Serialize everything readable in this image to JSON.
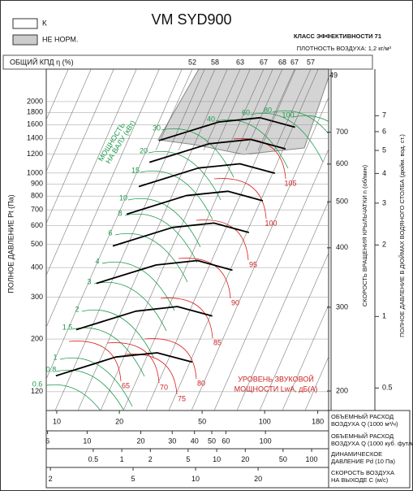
{
  "chart_data": {
    "type": "line",
    "title": "VM  SYD900",
    "efficiency_class": "КЛАСС ЭФФЕКТИВНОСТИ 71",
    "air_density": "ПЛОТНОСТЬ ВОЗДУХА: 1,2 кг/м³",
    "legend_items": [
      "K",
      "НЕ НОРМ."
    ],
    "efficiency_label": "ОБЩИЙ КПД η (%)",
    "efficiency_values": [
      52,
      58,
      63,
      67,
      68,
      67,
      57
    ],
    "y_label": "ПОЛНОЕ ДАВЛЕНИЕ Pt (Па)",
    "y_scale": "log",
    "ylim": [
      100,
      2740
    ],
    "yticks": [
      120,
      200,
      300,
      400,
      500,
      600,
      700,
      800,
      900,
      1000,
      1200,
      1400,
      1600,
      1800,
      2000
    ],
    "x_label": [
      "ОБЪЕМНЫЙ РАСХОД",
      "ВОЗДУХА Q (1000 м³/ч)"
    ],
    "x_scale": "log",
    "xlim": [
      8.9,
      203
    ],
    "xticks": [
      10,
      20,
      50,
      100,
      180
    ],
    "series": [
      {
        "color": "#000000",
        "x": [
          31,
          60,
          95,
          140
        ],
        "values": [
          1370,
          1640,
          1710,
          1560
        ]
      },
      {
        "color": "#000000",
        "x": [
          27.9,
          54,
          85.5,
          126
        ],
        "values": [
          1110,
          1328,
          1385,
          1264
        ]
      },
      {
        "color": "#000000",
        "x": [
          24.8,
          48,
          76,
          112
        ],
        "values": [
          877,
          1050,
          1094,
          998
        ]
      },
      {
        "color": "#000000",
        "x": [
          21.7,
          42,
          66.5,
          98
        ],
        "values": [
          671,
          804,
          838,
          764
        ]
      },
      {
        "color": "#000000",
        "x": [
          18.6,
          36,
          57,
          84
        ],
        "values": [
          493,
          590,
          616,
          562
        ]
      },
      {
        "color": "#000000",
        "x": [
          15.5,
          30,
          47.5,
          70
        ],
        "values": [
          343,
          410,
          428,
          390
        ]
      },
      {
        "color": "#000000",
        "x": [
          12.4,
          24,
          38,
          56
        ],
        "values": [
          219,
          262,
          274,
          250
        ]
      },
      {
        "color": "#000000",
        "x": [
          9.9,
          19.2,
          30.4,
          44.8
        ],
        "values": [
          140,
          168,
          175,
          160
        ]
      }
    ],
    "cfm_axis": {
      "label": [
        "ОБЪЕМНЫЙ РАСХОД",
        "ВОЗДУХА Q (1000 куб. фут/мин)"
      ],
      "lim": [
        5.9,
        226
      ],
      "ticks": [
        6,
        10,
        20,
        30,
        40,
        50,
        60,
        100
      ]
    },
    "dynamic_pressure_axis": {
      "label": [
        "ДИНАМИЧЕСКОЕ",
        "ДАВЛЕНИЕ Pd (10 Па)"
      ],
      "lim": [
        0.16,
        151
      ],
      "ticks": [
        0.5,
        1,
        2,
        5,
        10,
        20,
        50,
        100
      ]
    },
    "velocity_axis": {
      "label": [
        "СКОРОСТЬ ВОЗДУХА",
        "НА ВЫХОДЕ C (м/с)"
      ],
      "lim": [
        1.91,
        43.7
      ],
      "ticks": [
        2,
        5,
        10,
        20
      ]
    },
    "speed_axis": {
      "label": "СКОРОСТЬ ВРАЩЕНИЯ КРЫЛЬЧАТКИ  n (об/мин)",
      "lim": [
        182,
        950
      ],
      "ticks": [
        200,
        300,
        400,
        500,
        600,
        700
      ],
      "top_label": 49
    },
    "inch_axis": {
      "label": "ПОЛНОЕ ДАВЛЕНИЕ В ДЮЙМАХ ВОДЯНОГО СТОЛБА (дюйм. вод. ст.)",
      "lim": [
        0.402,
        11.0
      ],
      "ticks": [
        0.5,
        1,
        2,
        3,
        4,
        5,
        6,
        7
      ]
    },
    "power_label": [
      "МОЩНОСТЬ",
      "НА ВАЛУ (кВт)"
    ],
    "power_values": [
      0.6,
      0.8,
      1,
      1.5,
      2,
      3,
      4,
      6,
      8,
      10,
      15,
      20,
      30,
      40,
      60,
      80,
      100
    ],
    "noise_label": [
      "УРОВЕНЬ ЗВУКОВОЙ",
      "МОЩНОСТИ LwA, дБ(А)"
    ],
    "noise_values": [
      65,
      70,
      75,
      80,
      85,
      90,
      95,
      100,
      105
    ]
  }
}
